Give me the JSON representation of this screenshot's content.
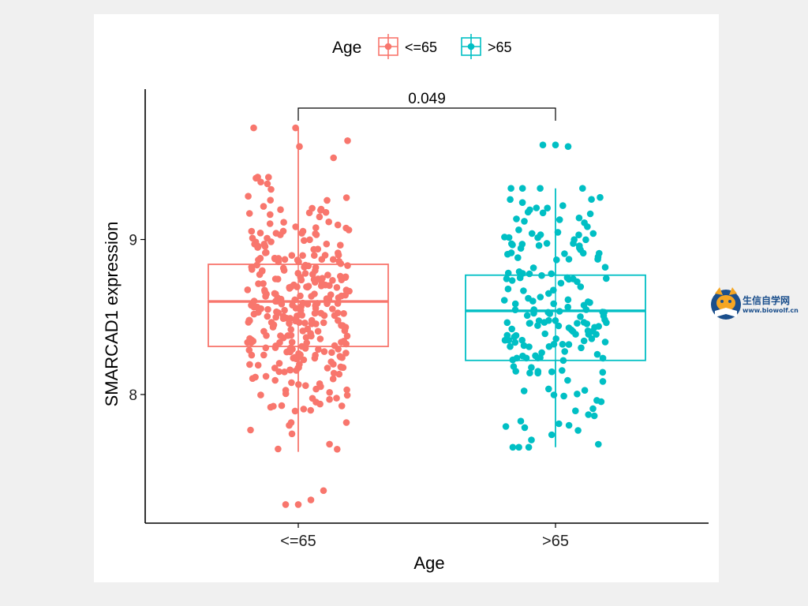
{
  "chart_data": {
    "type": "box",
    "xlabel": "Age",
    "ylabel": "SMARCAD1 expression",
    "legend": {
      "title": "Age",
      "position": "top",
      "entries": [
        {
          "label": "<=65",
          "color": "#F8766D"
        },
        {
          "label": ">65",
          "color": "#00BFC4"
        }
      ]
    },
    "categories": [
      "<=65",
      ">65"
    ],
    "yticks": [
      8,
      9
    ],
    "ylim": [
      7.17,
      9.97
    ],
    "grid": false,
    "annotation": {
      "text": "0.049",
      "from": "<=65",
      "to": ">65"
    },
    "boxes": [
      {
        "category": "<=65",
        "color": "#F8766D",
        "q1": 8.31,
        "median": 8.6,
        "q3": 8.84,
        "whisker_low": 7.63,
        "whisker_high": 9.72
      },
      {
        "category": ">65",
        "color": "#00BFC4",
        "q1": 8.22,
        "median": 8.54,
        "q3": 8.77,
        "whisker_low": 7.66,
        "whisker_high": 9.33
      }
    ],
    "outliers": {
      "<=65": [
        7.29,
        7.29,
        7.32,
        7.38
      ],
      ">65": [
        9.61,
        9.61,
        9.6
      ]
    },
    "points_summary": {
      "<=65": 330,
      ">65": 190
    }
  },
  "watermark": {
    "title": "生信自学网",
    "url": "www.biowolf.cn"
  }
}
